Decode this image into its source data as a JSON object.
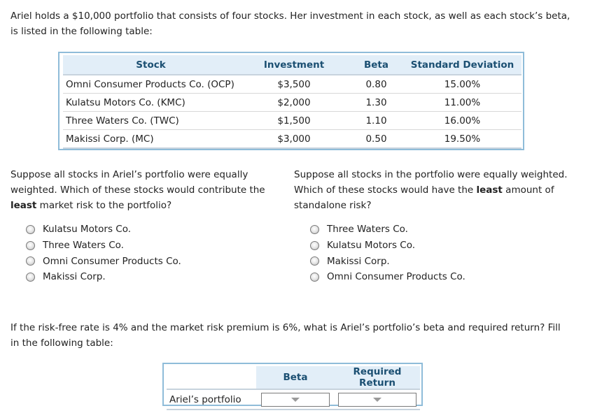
{
  "intro": {
    "line1": "Ariel holds a $10,000 portfolio that consists of four stocks. Her investment in each stock, as well as each stock’s beta,",
    "line2": "is listed in the following table:"
  },
  "stock_table": {
    "headers": [
      "Stock",
      "Investment",
      "Beta",
      "Standard Deviation"
    ],
    "rows": [
      [
        "Omni Consumer Products Co. (OCP)",
        "$3,500",
        "0.80",
        "15.00%"
      ],
      [
        "Kulatsu Motors Co. (KMC)",
        "$2,000",
        "1.30",
        "11.00%"
      ],
      [
        "Three Waters Co. (TWC)",
        "$1,500",
        "1.10",
        "16.00%"
      ],
      [
        "Makissi Corp. (MC)",
        "$3,000",
        "0.50",
        "19.50%"
      ]
    ]
  },
  "question1": {
    "line1": "Suppose all stocks in Ariel’s portfolio were equally",
    "line2": "weighted. Which of these stocks would contribute the",
    "line3_bold": "least",
    "line3_rest": " market risk to the portfolio?",
    "options": [
      "Kulatsu Motors Co.",
      "Three Waters Co.",
      "Omni Consumer Products Co.",
      "Makissi Corp."
    ]
  },
  "question2": {
    "line1": "Suppose all stocks in the portfolio were equally weighted.",
    "line2_pre": "Which of these stocks would have the ",
    "line2_bold": "least",
    "line2_post": " amount of",
    "line3": "standalone risk?",
    "options": [
      "Three Waters Co.",
      "Kulatsu Motors Co.",
      "Makissi Corp.",
      "Omni Consumer Products Co."
    ]
  },
  "question3": {
    "line1": "If the risk-free rate is 4% and the market risk premium is 6%, what is Ariel’s portfolio’s beta and required return? Fill",
    "line2": "in the following table:"
  },
  "return_table": {
    "headers": [
      "",
      "Beta",
      "Required Return"
    ],
    "row_label": "Ariel’s portfolio"
  }
}
